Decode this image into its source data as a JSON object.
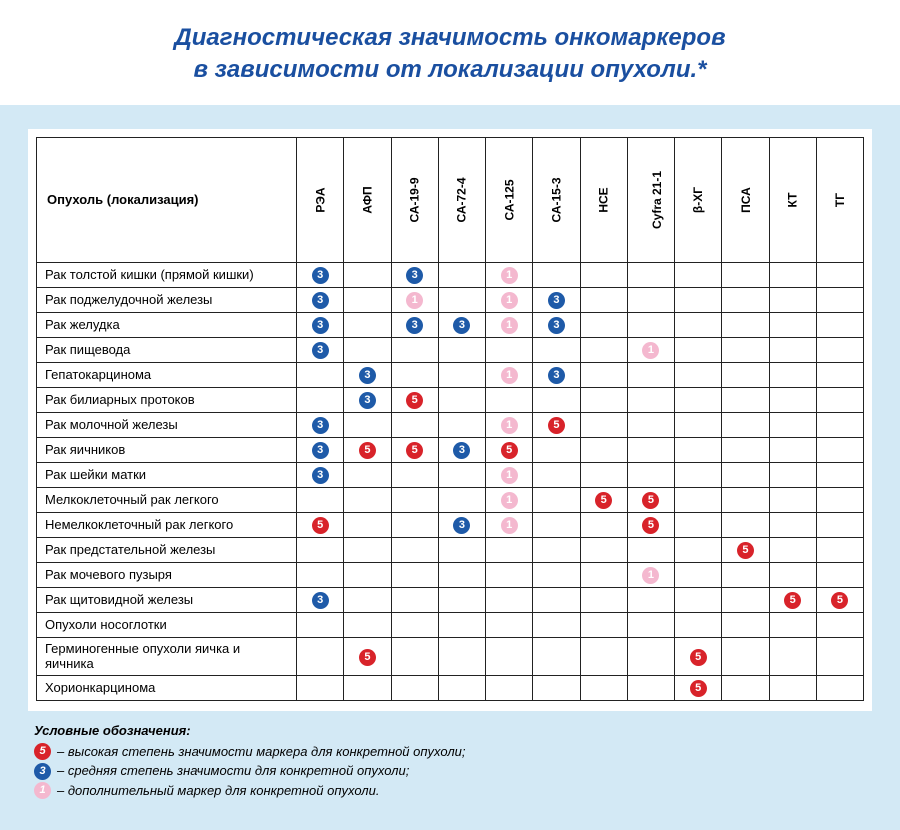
{
  "title": {
    "line1": "Диагностическая значимость онкомаркеров",
    "line2": "в зависимости от локализации опухоли.*"
  },
  "colors": {
    "title": "#1a4fa0",
    "panel_bg": "#d3e9f5",
    "table_bg": "#ffffff",
    "border": "#222222"
  },
  "markers": {
    "high": {
      "bg": "#d8232a",
      "fg": "#ffffff",
      "glyph": "5"
    },
    "medium": {
      "bg": "#1e5aa8",
      "fg": "#ffffff",
      "glyph": "3"
    },
    "extra": {
      "bg": "#f4b8cf",
      "fg": "#ffffff",
      "glyph": "1"
    }
  },
  "row_header": "Опухоль (локализация)",
  "columns": [
    "РЭА",
    "АФП",
    "СА-19-9",
    "СА-72-4",
    "СА-125",
    "СА-15-3",
    "НСЕ",
    "Cyfra 21-1",
    "β-ХГ",
    "ПСА",
    "КТ",
    "ТГ"
  ],
  "rows": [
    {
      "label": "Рак толстой кишки (прямой кишки)",
      "cells": [
        "medium",
        "",
        "medium",
        "",
        "extra",
        "",
        "",
        "",
        "",
        "",
        "",
        ""
      ]
    },
    {
      "label": "Рак поджелудочной железы",
      "cells": [
        "medium",
        "",
        "extra",
        "",
        "extra",
        "medium",
        "",
        "",
        "",
        "",
        "",
        ""
      ]
    },
    {
      "label": "Рак желудка",
      "cells": [
        "medium",
        "",
        "medium",
        "medium",
        "extra",
        "medium",
        "",
        "",
        "",
        "",
        "",
        ""
      ]
    },
    {
      "label": "Рак пищевода",
      "cells": [
        "medium",
        "",
        "",
        "",
        "",
        "",
        "",
        "extra",
        "",
        "",
        "",
        ""
      ]
    },
    {
      "label": "Гепатокарцинома",
      "cells": [
        "",
        "medium",
        "",
        "",
        "extra",
        "medium",
        "",
        "",
        "",
        "",
        "",
        ""
      ]
    },
    {
      "label": "Рак билиарных протоков",
      "cells": [
        "",
        "medium",
        "high",
        "",
        "",
        "",
        "",
        "",
        "",
        "",
        "",
        ""
      ]
    },
    {
      "label": "Рак молочной железы",
      "cells": [
        "medium",
        "",
        "",
        "",
        "extra",
        "high",
        "",
        "",
        "",
        "",
        "",
        ""
      ]
    },
    {
      "label": "Рак яичников",
      "cells": [
        "medium",
        "high",
        "high",
        "medium",
        "high",
        "",
        "",
        "",
        "",
        "",
        "",
        ""
      ]
    },
    {
      "label": "Рак шейки матки",
      "cells": [
        "medium",
        "",
        "",
        "",
        "extra",
        "",
        "",
        "",
        "",
        "",
        "",
        ""
      ]
    },
    {
      "label": "Мелкоклеточный рак легкого",
      "cells": [
        "",
        "",
        "",
        "",
        "extra",
        "",
        "high",
        "high",
        "",
        "",
        "",
        ""
      ]
    },
    {
      "label": "Немелкоклеточный рак легкого",
      "cells": [
        "high",
        "",
        "",
        "medium",
        "extra",
        "",
        "",
        "high",
        "",
        "",
        "",
        ""
      ]
    },
    {
      "label": "Рак предстательной железы",
      "cells": [
        "",
        "",
        "",
        "",
        "",
        "",
        "",
        "",
        "",
        "high",
        "",
        ""
      ]
    },
    {
      "label": "Рак мочевого пузыря",
      "cells": [
        "",
        "",
        "",
        "",
        "",
        "",
        "",
        "extra",
        "",
        "",
        "",
        ""
      ]
    },
    {
      "label": "Рак щитовидной железы",
      "cells": [
        "medium",
        "",
        "",
        "",
        "",
        "",
        "",
        "",
        "",
        "",
        "high",
        "high"
      ]
    },
    {
      "label": "Опухоли носоглотки",
      "cells": [
        "",
        "",
        "",
        "",
        "",
        "",
        "",
        "",
        "",
        "",
        "",
        ""
      ]
    },
    {
      "label": "Герминогенные опухоли яичка и яичника",
      "cells": [
        "",
        "high",
        "",
        "",
        "",
        "",
        "",
        "",
        "high",
        "",
        "",
        ""
      ]
    },
    {
      "label": "Хорионкарцинома",
      "cells": [
        "",
        "",
        "",
        "",
        "",
        "",
        "",
        "",
        "high",
        "",
        "",
        ""
      ]
    }
  ],
  "legend": {
    "title": "Условные обозначения:",
    "items": [
      {
        "marker": "high",
        "text": " – высокая степень значимости маркера для конкретной опухоли;"
      },
      {
        "marker": "medium",
        "text": " – средняя степень значимости для конкретной опухоли;"
      },
      {
        "marker": "extra",
        "text": " – дополнительный маркер для конкретной опухоли."
      }
    ]
  }
}
